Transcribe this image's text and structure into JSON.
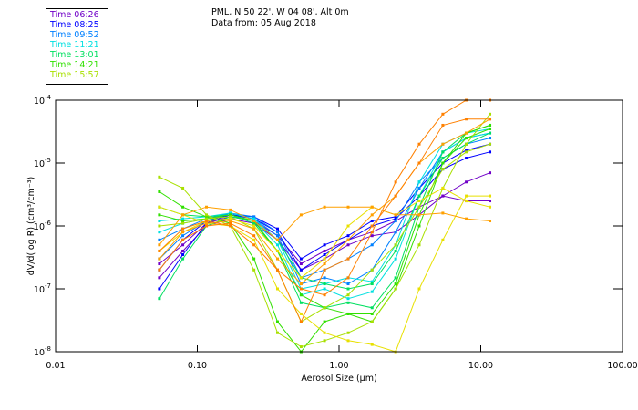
{
  "chart_data": {
    "type": "line",
    "title_line1": "PML, N 50 22', W 04 08', Alt 0m",
    "title_line2": "Data from: 05 Aug 2018",
    "xlabel": "Aerosol Size (μm)",
    "ylabel": "dV/d(log R) (cm³/cm⁻³)",
    "xscale": "log",
    "yscale": "log",
    "xlim": [
      0.01,
      100
    ],
    "ylim": [
      1e-08,
      0.0001
    ],
    "xticks": [
      "0.01",
      "0.10",
      "1.00",
      "10.00",
      "100.00"
    ],
    "xtick_values": [
      0.01,
      0.1,
      1,
      10,
      100
    ],
    "yticks": [
      {
        "base": "10",
        "exp": "-8",
        "value": 1e-08
      },
      {
        "base": "10",
        "exp": "-7",
        "value": 1e-07
      },
      {
        "base": "10",
        "exp": "-6",
        "value": 1e-06
      },
      {
        "base": "10",
        "exp": "-5",
        "value": 1e-05
      },
      {
        "base": "10",
        "exp": "-4",
        "value": 0.0001
      }
    ],
    "legend": [
      {
        "label": "Time 06:26",
        "color": "#7000c8"
      },
      {
        "label": "Time 08:25",
        "color": "#0000ff"
      },
      {
        "label": "Time 09:52",
        "color": "#0080ff"
      },
      {
        "label": "Time 11:21",
        "color": "#00e0e0"
      },
      {
        "label": "Time 13:01",
        "color": "#00e060"
      },
      {
        "label": "Time 14:21",
        "color": "#30e000"
      },
      {
        "label": "Time 15:57",
        "color": "#a8e000"
      }
    ],
    "legend_position": "top-left-outside",
    "x": [
      0.054,
      0.079,
      0.116,
      0.171,
      0.251,
      0.368,
      0.54,
      0.79,
      1.16,
      1.71,
      2.51,
      3.68,
      5.4,
      7.9,
      11.6
    ],
    "series": [
      {
        "color": "#7000c8",
        "values": [
          1.5e-07,
          4e-07,
          1e-06,
          1.3e-06,
          1.1e-06,
          6e-07,
          2e-07,
          3e-07,
          5e-07,
          7e-07,
          8e-07,
          1.5e-06,
          3e-06,
          5e-06,
          7e-06
        ]
      },
      {
        "color": "#7000c8",
        "values": [
          2.5e-07,
          5e-07,
          1.1e-06,
          1.4e-06,
          1.2e-06,
          7e-07,
          2.5e-07,
          4e-07,
          6e-07,
          8e-07,
          1.2e-06,
          2e-06,
          3e-06,
          2.5e-06,
          2.5e-06
        ]
      },
      {
        "color": "#0000ff",
        "values": [
          1e-07,
          3.5e-07,
          1.1e-06,
          1.5e-06,
          1.3e-06,
          8e-07,
          2e-07,
          3.5e-07,
          6e-07,
          1e-06,
          1.3e-06,
          3e-06,
          8e-06,
          1.2e-05,
          1.5e-05
        ]
      },
      {
        "color": "#0000ff",
        "values": [
          2e-07,
          6e-07,
          1.2e-06,
          1.5e-06,
          1.4e-06,
          9e-07,
          3e-07,
          5e-07,
          7e-07,
          1.2e-06,
          1.4e-06,
          4e-06,
          1e-05,
          1.6e-05,
          2e-05
        ]
      },
      {
        "color": "#0080ff",
        "values": [
          3e-07,
          7e-07,
          1.2e-06,
          1.6e-06,
          1.4e-06,
          8e-07,
          1.5e-07,
          2e-07,
          3e-07,
          5e-07,
          1.2e-06,
          5e-06,
          1.2e-05,
          2e-05,
          2.5e-05
        ]
      },
      {
        "color": "#0080ff",
        "values": [
          6e-07,
          9e-07,
          1.3e-06,
          1.6e-06,
          1.3e-06,
          7e-07,
          1.2e-07,
          1.5e-07,
          1.2e-07,
          2e-07,
          8e-07,
          4e-06,
          1.5e-05,
          2.5e-05,
          3e-05
        ]
      },
      {
        "color": "#00e0e0",
        "values": [
          1.2e-06,
          1.3e-06,
          1.4e-06,
          1.6e-06,
          1.3e-06,
          6e-07,
          1e-07,
          1.2e-07,
          1.5e-07,
          1.3e-07,
          5e-07,
          5e-06,
          2e-05,
          3e-05,
          3.5e-05
        ]
      },
      {
        "color": "#00e0e0",
        "values": [
          8e-07,
          1.1e-06,
          1.3e-06,
          1.5e-06,
          1.2e-06,
          5e-07,
          8e-08,
          1e-07,
          7e-08,
          9e-08,
          3e-07,
          3e-06,
          1.5e-05,
          2.5e-05,
          3e-05
        ]
      },
      {
        "color": "#00e060",
        "values": [
          2e-06,
          1.5e-06,
          1.4e-06,
          1.5e-06,
          1.1e-06,
          4e-07,
          6e-08,
          5e-08,
          6e-08,
          5e-08,
          1.5e-07,
          2e-06,
          1.5e-05,
          3e-05,
          4e-05
        ]
      },
      {
        "color": "#00e060",
        "values": [
          7e-08,
          3e-07,
          1e-06,
          1.4e-06,
          1.2e-06,
          6e-07,
          1.5e-07,
          1.2e-07,
          1e-07,
          1.2e-07,
          4e-07,
          3e-06,
          1.2e-05,
          2e-05,
          3e-05
        ]
      },
      {
        "color": "#30e000",
        "values": [
          3.5e-06,
          2e-06,
          1.4e-06,
          1.1e-06,
          3e-07,
          3e-08,
          1e-08,
          3e-08,
          4e-08,
          3e-08,
          1e-07,
          1e-06,
          1e-05,
          3e-05,
          4e-05
        ]
      },
      {
        "color": "#30e000",
        "values": [
          1.5e-06,
          1.2e-06,
          1.3e-06,
          1.5e-06,
          1.2e-06,
          4e-07,
          8e-08,
          5e-08,
          4e-08,
          4e-08,
          1.2e-07,
          1.5e-06,
          1e-05,
          2.5e-05,
          3.5e-05
        ]
      },
      {
        "color": "#a8e000",
        "values": [
          6e-06,
          4e-06,
          1.5e-06,
          1e-06,
          2e-07,
          2e-08,
          1.2e-08,
          1.5e-08,
          2e-08,
          3e-08,
          1e-07,
          5e-07,
          4e-06,
          2e-05,
          6e-05
        ]
      },
      {
        "color": "#a8e000",
        "values": [
          1e-06,
          1.1e-06,
          1.3e-06,
          1.4e-06,
          9e-07,
          2e-07,
          3e-08,
          5e-08,
          8e-08,
          2e-07,
          5e-07,
          2e-06,
          8e-06,
          1.5e-05,
          2e-05
        ]
      },
      {
        "color": "#e8e000",
        "values": [
          2e-06,
          1.5e-06,
          1.1e-06,
          1e-06,
          6e-07,
          1e-07,
          4e-08,
          2e-08,
          1.5e-08,
          1.3e-08,
          1e-08,
          1e-07,
          6e-07,
          3e-06,
          3e-06
        ]
      },
      {
        "color": "#e8e000",
        "values": [
          4e-07,
          8e-07,
          1.2e-06,
          1.3e-06,
          1e-06,
          4e-07,
          1.5e-07,
          3e-07,
          1e-06,
          2e-06,
          1.5e-06,
          2.5e-06,
          4e-06,
          2.5e-06,
          2e-06
        ]
      },
      {
        "color": "#ffa000",
        "values": [
          5e-07,
          1.5e-06,
          2e-06,
          1.8e-06,
          1.2e-06,
          6e-07,
          1.5e-06,
          2e-06,
          2e-06,
          2e-06,
          1.5e-06,
          1.5e-06,
          1.6e-06,
          1.3e-06,
          1.2e-06
        ]
      },
      {
        "color": "#ffa000",
        "values": [
          3e-07,
          8e-07,
          1.1e-06,
          1.2e-06,
          9e-07,
          3e-07,
          1.2e-07,
          2.5e-07,
          6e-07,
          1.5e-06,
          3e-06,
          1e-05,
          2e-05,
          3e-05,
          5e-05
        ]
      },
      {
        "color": "#ff8000",
        "values": [
          2e-07,
          6e-07,
          1e-06,
          1.1e-06,
          7e-07,
          2e-07,
          3e-08,
          2e-07,
          3e-07,
          1e-06,
          3e-06,
          1e-05,
          4e-05,
          5e-05,
          5e-05
        ]
      },
      {
        "color": "#ff8000",
        "values": [
          4e-07,
          9e-07,
          1.2e-06,
          1e-06,
          5e-07,
          2e-07,
          1e-07,
          8e-08,
          1.5e-07,
          8e-07,
          5e-06,
          2e-05,
          6e-05,
          0.0001,
          0.0001
        ]
      }
    ]
  }
}
